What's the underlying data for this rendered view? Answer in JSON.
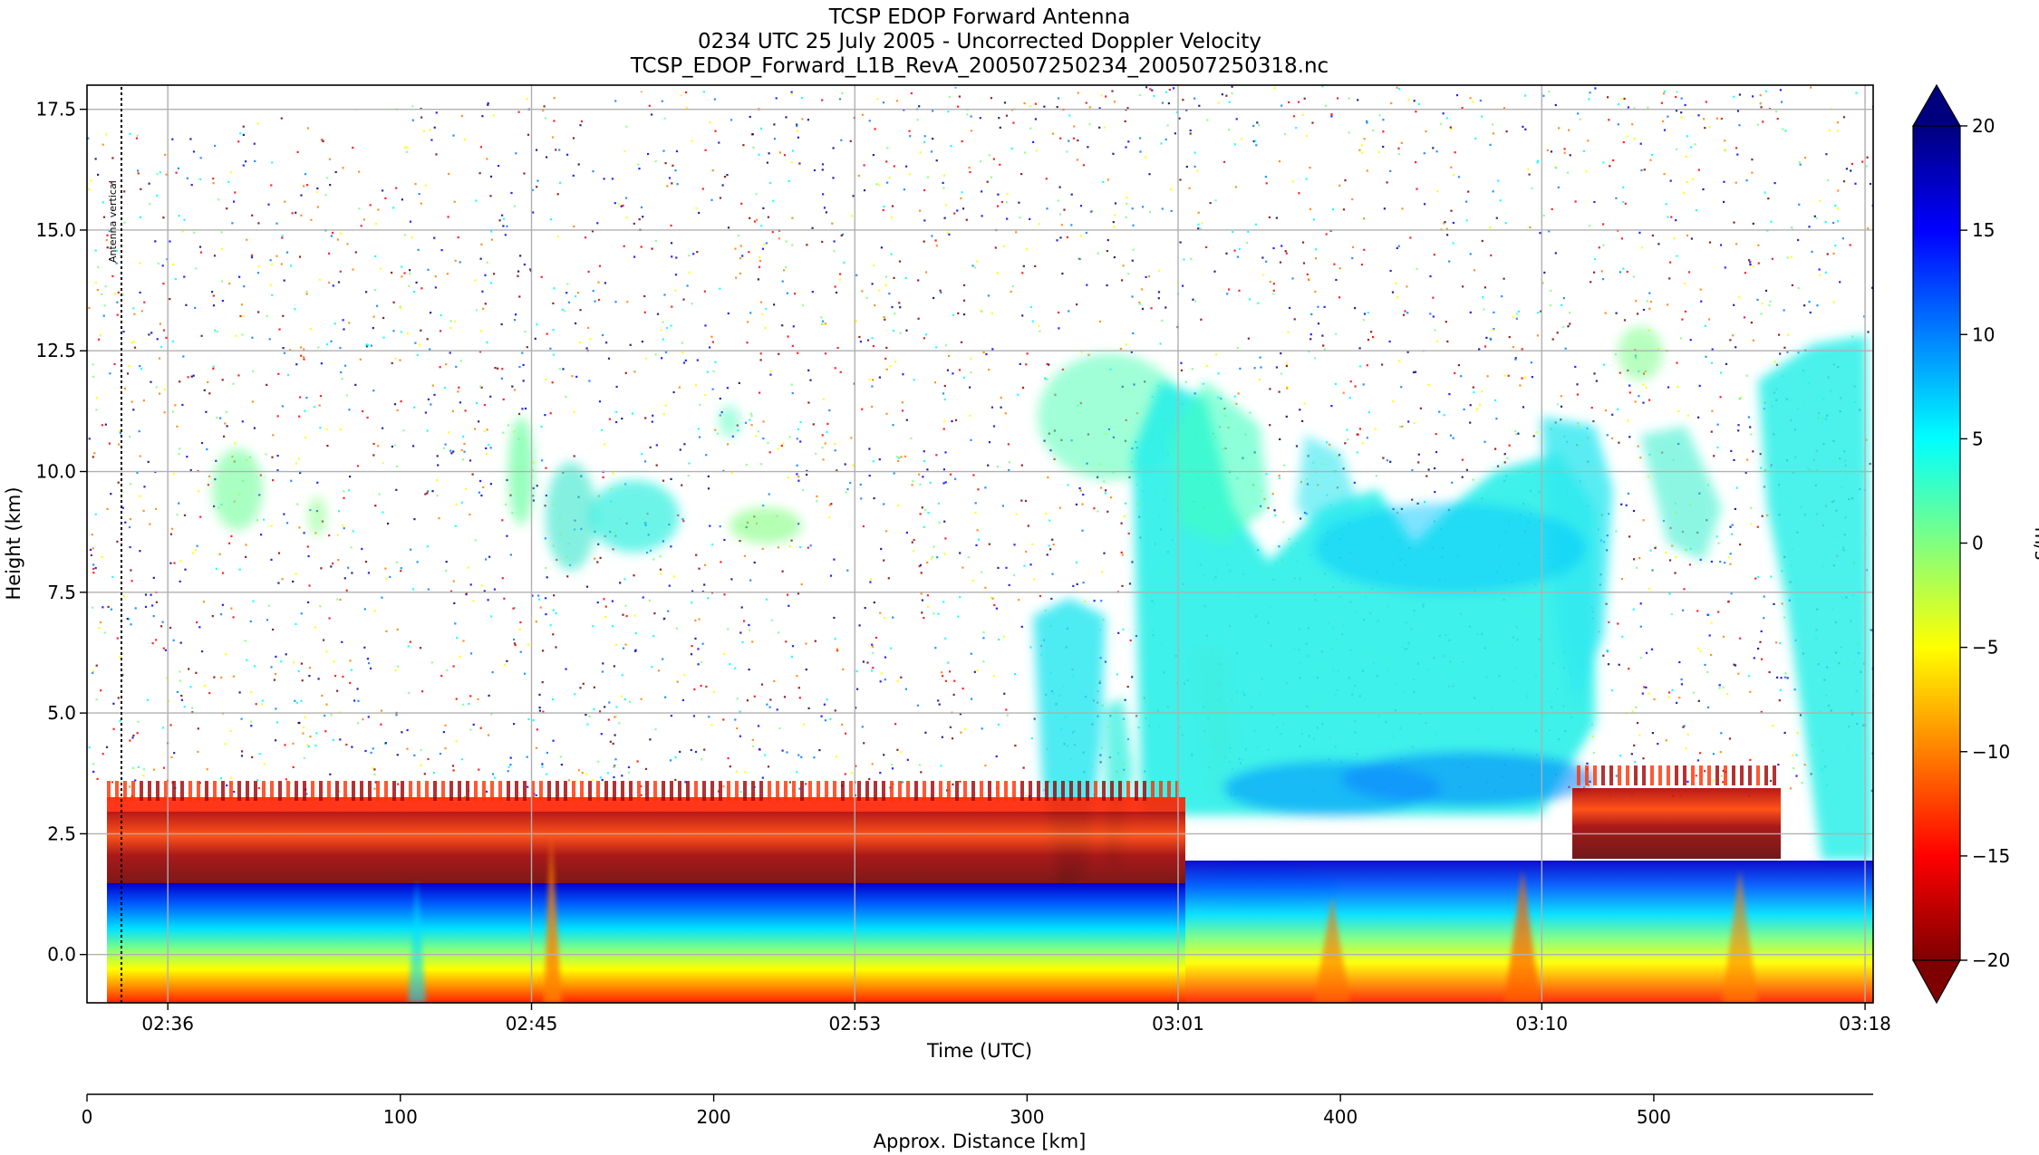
{
  "chart_data": {
    "type": "heatmap",
    "title_lines": [
      "TCSP EDOP Forward Antenna",
      "0234 UTC 25 July 2005 - Uncorrected Doppler Velocity",
      "TCSP_EDOP_Forward_L1B_RevA_200507250234_200507250318.nc"
    ],
    "xlabel": "Time (UTC)",
    "ylabel": "Height (km)",
    "ylim": [
      -1.0,
      18.0
    ],
    "y_ticks": [
      0.0,
      2.5,
      5.0,
      7.5,
      10.0,
      12.5,
      15.0,
      17.5
    ],
    "y_tick_labels": [
      "0.0",
      "2.5",
      "5.0",
      "7.5",
      "10.0",
      "12.5",
      "15.0",
      "17.5"
    ],
    "time_range": [
      "02:34",
      "03:18"
    ],
    "time_ticks": [
      "02:36",
      "02:45",
      "02:53",
      "03:01",
      "03:10",
      "03:18"
    ],
    "grid": true,
    "annotation": "Antenna vertical",
    "colorbar": {
      "label": "m/s",
      "vmin": -20,
      "vmax": 20,
      "ticks": [
        20,
        15,
        10,
        5,
        0,
        -5,
        -10,
        -15,
        -20
      ],
      "extend": "both",
      "colormap": [
        "#7f0000",
        "#ff0000",
        "#ff8000",
        "#ffff00",
        "#80ff80",
        "#00ffff",
        "#0080ff",
        "#0000ff",
        "#00007f"
      ]
    },
    "distance_axis": {
      "label": "Approx. Distance [km]",
      "range": [
        0,
        570
      ],
      "ticks": [
        0,
        100,
        200,
        300,
        400,
        500
      ]
    }
  }
}
